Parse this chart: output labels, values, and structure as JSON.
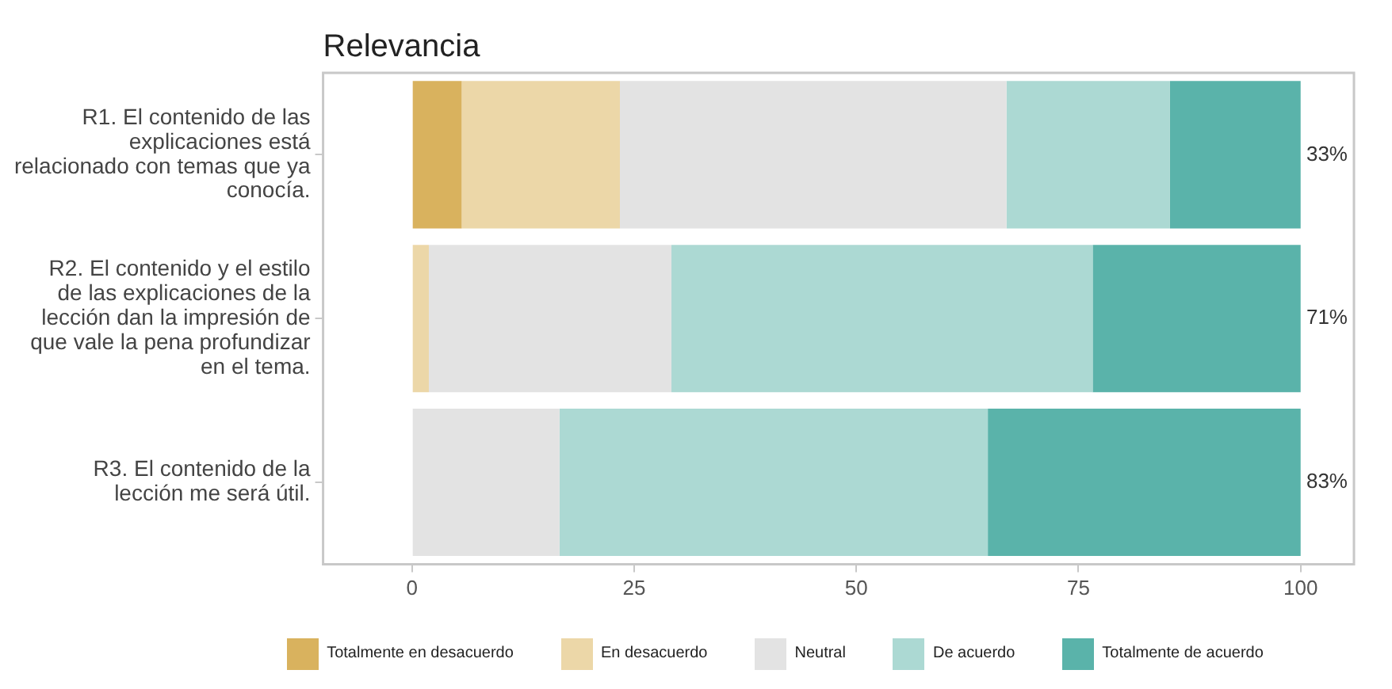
{
  "chart_data": {
    "type": "bar",
    "orientation": "horizontal",
    "stacked": true,
    "title": "Relevancia",
    "categories": [
      "R1. El contenido de las explicaciones está relacionado con temas que ya conocía.",
      "R2. El contenido y el estilo de las explicaciones de la lección dan la impresión de que vale la pena profundizar en el tema.",
      "R3. El contenido de la lección me será útil."
    ],
    "series": [
      {
        "name": "Totalmente en desacuerdo",
        "color": "#d9b25e",
        "values": [
          5.6,
          0,
          0
        ]
      },
      {
        "name": "En desacuerdo",
        "color": "#ecd7a8",
        "values": [
          17.8,
          1.9,
          0
        ]
      },
      {
        "name": "Neutral",
        "color": "#e3e3e3",
        "values": [
          43.5,
          27.3,
          16.6
        ]
      },
      {
        "name": "De acuerdo",
        "color": "#acd9d3",
        "values": [
          18.4,
          47.4,
          48.2
        ]
      },
      {
        "name": "Totalmente de acuerdo",
        "color": "#5ab3aa",
        "values": [
          14.7,
          23.4,
          35.2
        ]
      }
    ],
    "xlim": [
      -10,
      106
    ],
    "xticks": [
      0,
      25,
      50,
      75,
      100
    ],
    "grid": false,
    "legend": "bottom",
    "annotations": [
      "33%",
      "71%",
      "83%"
    ]
  }
}
